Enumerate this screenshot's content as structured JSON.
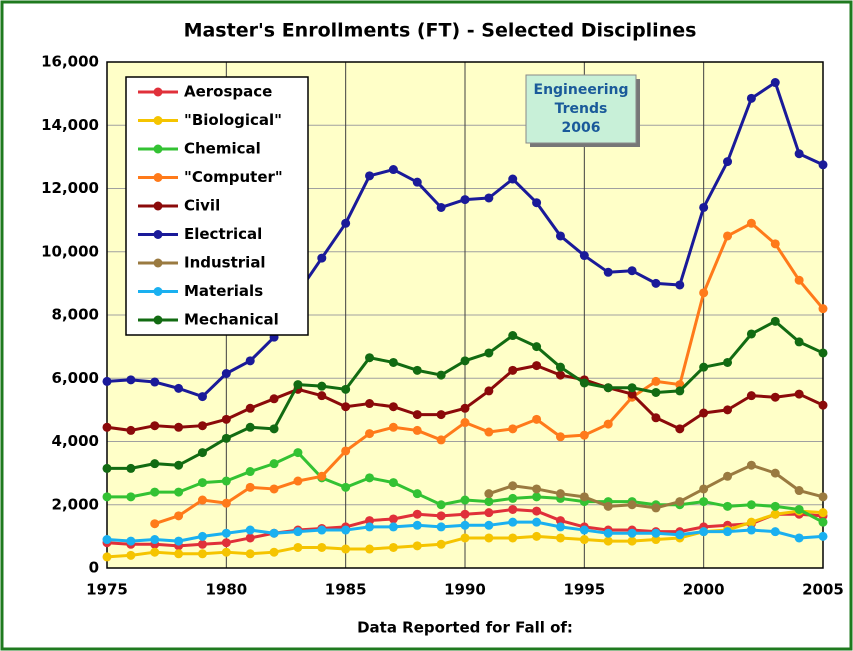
{
  "chart_data": {
    "type": "line",
    "title": "Master's Enrollments (FT) - Selected Disciplines",
    "x_label": "Data Reported for Fall of:",
    "annotation": [
      "Engineering",
      "Trends",
      "2006"
    ],
    "x": [
      1975,
      1976,
      1977,
      1978,
      1979,
      1980,
      1981,
      1982,
      1983,
      1984,
      1985,
      1986,
      1987,
      1988,
      1989,
      1990,
      1991,
      1992,
      1993,
      1994,
      1995,
      1996,
      1997,
      1998,
      1999,
      2000,
      2001,
      2002,
      2003,
      2004,
      2005
    ],
    "xlim": [
      1975,
      2005
    ],
    "xticks": [
      1975,
      1980,
      1985,
      1990,
      1995,
      2000,
      2005
    ],
    "ylim": [
      0,
      16000
    ],
    "yticks": [
      0,
      {
        "value": 2000,
        "label": "2,000"
      },
      {
        "value": 4000,
        "label": "4,000"
      },
      {
        "value": 6000,
        "label": "6,000"
      },
      {
        "value": 8000,
        "label": "8,000"
      },
      {
        "value": 10000,
        "label": "10,000"
      },
      {
        "value": 12000,
        "label": "12,000"
      },
      {
        "value": 14000,
        "label": "14,000"
      },
      {
        "value": 16000,
        "label": "16,000"
      }
    ],
    "grid": true,
    "legend": "upper left",
    "series": [
      {
        "name": "Aerospace",
        "color": "#e0303a",
        "values": [
          800,
          750,
          750,
          700,
          750,
          800,
          950,
          1100,
          1200,
          1250,
          1300,
          1500,
          1550,
          1700,
          1650,
          1700,
          1750,
          1850,
          1800,
          1500,
          1300,
          1200,
          1200,
          1150,
          1150,
          1300,
          1350,
          1400,
          1700,
          1700,
          1650
        ]
      },
      {
        "name": "\"Biological\"",
        "color": "#f5c400",
        "values": [
          350,
          400,
          500,
          450,
          450,
          500,
          450,
          500,
          650,
          650,
          600,
          600,
          650,
          700,
          750,
          950,
          950,
          950,
          1000,
          950,
          900,
          850,
          850,
          900,
          950,
          1150,
          1200,
          1450,
          1700,
          1800,
          1750
        ]
      },
      {
        "name": "Chemical",
        "color": "#33c233",
        "values": [
          2250,
          2250,
          2400,
          2400,
          2700,
          2750,
          3050,
          3300,
          3650,
          2850,
          2550,
          2850,
          2700,
          2350,
          2000,
          2150,
          2100,
          2200,
          2250,
          2200,
          2100,
          2100,
          2100,
          2000,
          2000,
          2100,
          1950,
          2000,
          1950,
          1850,
          1450
        ]
      },
      {
        "name": "\"Computer\"",
        "color": "#ff7a1a",
        "values": [
          null,
          null,
          1400,
          1650,
          2150,
          2050,
          2550,
          2500,
          2750,
          2900,
          3700,
          4250,
          4450,
          4350,
          4050,
          4600,
          4300,
          4400,
          4700,
          4150,
          4200,
          4550,
          5400,
          5900,
          5800,
          8700,
          10500,
          10900,
          10250,
          9100,
          8200
        ]
      },
      {
        "name": "Civil",
        "color": "#8b0a0a",
        "values": [
          4450,
          4350,
          4500,
          4450,
          4500,
          4700,
          5050,
          5350,
          5650,
          5450,
          5100,
          5200,
          5100,
          4850,
          4850,
          5050,
          5600,
          6250,
          6400,
          6100,
          5950,
          5700,
          5500,
          4750,
          4400,
          4900,
          5000,
          5450,
          5400,
          5500,
          5150
        ]
      },
      {
        "name": "Electrical",
        "color": "#1a1a99",
        "values": [
          5900,
          5950,
          5880,
          5680,
          5420,
          6150,
          6550,
          7300,
          8700,
          9800,
          10900,
          12400,
          12600,
          12200,
          11400,
          11650,
          11700,
          12300,
          11550,
          10500,
          9880,
          9350,
          9400,
          9000,
          8950,
          11400,
          12850,
          14850,
          15350,
          13100,
          12750
        ]
      },
      {
        "name": "Industrial",
        "color": "#9a7a40",
        "values": [
          null,
          null,
          null,
          null,
          null,
          null,
          null,
          null,
          null,
          null,
          null,
          null,
          null,
          null,
          null,
          null,
          2350,
          2600,
          2500,
          2350,
          2250,
          1950,
          2000,
          1900,
          2100,
          2500,
          2900,
          3250,
          3000,
          2450,
          2250
        ]
      },
      {
        "name": "Materials",
        "color": "#1ab0f0",
        "values": [
          900,
          850,
          900,
          850,
          1000,
          1100,
          1200,
          1100,
          1150,
          1200,
          1200,
          1300,
          1300,
          1350,
          1300,
          1350,
          1350,
          1450,
          1450,
          1300,
          1200,
          1100,
          1100,
          1100,
          1050,
          1150,
          1150,
          1200,
          1150,
          950,
          1000
        ]
      },
      {
        "name": "Mechanical",
        "color": "#126b12",
        "values": [
          3150,
          3150,
          3300,
          3250,
          3650,
          4100,
          4450,
          4400,
          5800,
          5750,
          5650,
          6650,
          6500,
          6250,
          6100,
          6550,
          6800,
          7350,
          7000,
          6350,
          5850,
          5700,
          5700,
          5550,
          5600,
          6350,
          6500,
          7400,
          7800,
          7150,
          6800
        ]
      }
    ]
  }
}
